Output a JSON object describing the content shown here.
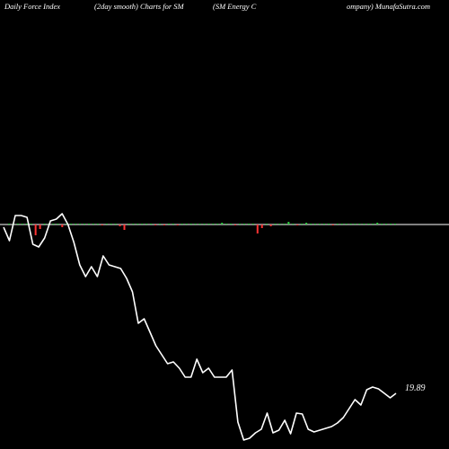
{
  "header": {
    "title_part1": "Daily Force  Index",
    "title_part2": "(2day smooth) Charts for SM",
    "title_part3": "(SM Energy C",
    "title_part4": "ompany) MunafaSutra.com"
  },
  "colors": {
    "background": "#000000",
    "line": "#ffffff",
    "zero_line": "#ffffff",
    "positive_bar": "#2ecc40",
    "negative_bar": "#ff3333"
  },
  "chart_data": {
    "type": "line",
    "last_value_label": "19.89",
    "line_values": [
      -3,
      -18,
      10,
      10,
      8,
      -22,
      -25,
      -15,
      4,
      6,
      12,
      0,
      -20,
      -45,
      -58,
      -47,
      -58,
      -35,
      -45,
      -47,
      -49,
      -60,
      -75,
      -110,
      -105,
      -120,
      -135,
      -145,
      -155,
      -153,
      -160,
      -170,
      -170,
      -150,
      -165,
      -160,
      -170,
      -170,
      -170,
      -162,
      -220,
      -240,
      -238,
      -232,
      -228,
      -210,
      -232,
      -229,
      -218,
      -233,
      -210,
      -211,
      -228,
      -231,
      -229,
      -227,
      -225,
      -221,
      -215,
      -205,
      -195,
      -201,
      -184,
      -181,
      -183,
      -188,
      -193,
      -188
    ],
    "force_bars": [
      0,
      0,
      0,
      0,
      0,
      0,
      -12,
      -5,
      0,
      0,
      0,
      0,
      -3,
      0,
      1,
      0,
      0,
      0,
      0,
      0,
      0,
      -1,
      0,
      0,
      0,
      -2,
      -6,
      0,
      0,
      0,
      0,
      0,
      0,
      -1,
      0,
      -1,
      0,
      0,
      -1,
      0,
      0,
      0,
      0,
      0,
      0,
      0,
      0,
      0,
      2,
      0,
      0,
      -1,
      0,
      0,
      0,
      0,
      -10,
      -4,
      0,
      -2,
      0,
      0,
      0,
      3,
      0,
      -1,
      0,
      2,
      0,
      0,
      0,
      1,
      0,
      -1,
      0,
      0,
      1,
      0,
      0,
      0,
      0,
      0,
      0,
      2,
      0,
      0,
      0,
      0
    ]
  }
}
